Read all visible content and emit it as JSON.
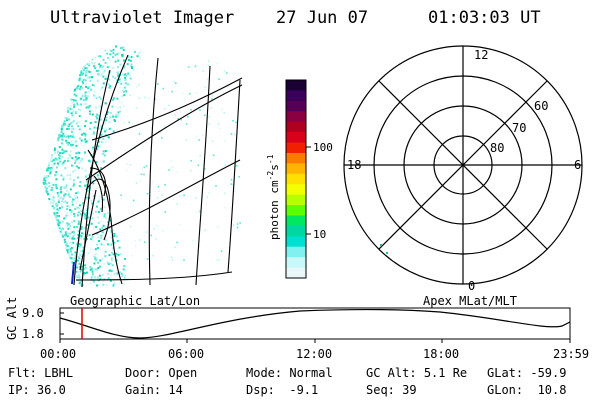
{
  "header": {
    "instrument": "Ultraviolet Imager",
    "date": "27 Jun 07",
    "time": "01:03:03 UT"
  },
  "geo_map": {
    "label": "Geographic Lat/Lon"
  },
  "colorbar": {
    "unit_label": "photon cm",
    "unit_sup1": "-2",
    "unit_mid": "s",
    "unit_sup2": "-1",
    "ticks": [
      "100",
      "10"
    ],
    "scale": "log",
    "colors": [
      "#1a0033",
      "#3a005a",
      "#550055",
      "#8a0040",
      "#b00020",
      "#d8001a",
      "#f02000",
      "#ff7a00",
      "#ffb400",
      "#ffe000",
      "#f4ff00",
      "#b8ff00",
      "#5cff00",
      "#00e860",
      "#00d8a0",
      "#00e0d0",
      "#80f0f0",
      "#c8f8f8",
      "#e8f8f8"
    ]
  },
  "polar_map": {
    "label": "Apex MLat/MLT",
    "mlt_labels": {
      "top": "12",
      "left": "18",
      "right": "6",
      "bottom": "0"
    },
    "lat_labels": [
      "60",
      "70",
      "80"
    ]
  },
  "orbit": {
    "ylabel": "GC Alt",
    "yticks": [
      "9.0",
      "1.8"
    ],
    "xticks": [
      "00:00",
      "06:00",
      "12:00",
      "18:00",
      "23:59"
    ],
    "current_time_marker": "01:03",
    "marker_color": "#e00000"
  },
  "info": {
    "row1": [
      {
        "label": "Flt:",
        "value": "LBHL"
      },
      {
        "label": "Door:",
        "value": "Open"
      },
      {
        "label": "Mode:",
        "value": "Normal"
      },
      {
        "label": "GC Alt:",
        "value": "5.1 Re"
      },
      {
        "label": "GLat:",
        "value": "-59.9"
      }
    ],
    "row2": [
      {
        "label": "IP:",
        "value": "36.0"
      },
      {
        "label": "Gain:",
        "value": "14"
      },
      {
        "label": "Dsp:",
        "value": "-9.1"
      },
      {
        "label": "Seq:",
        "value": "39"
      },
      {
        "label": "GLon:",
        "value": "10.8"
      }
    ]
  }
}
